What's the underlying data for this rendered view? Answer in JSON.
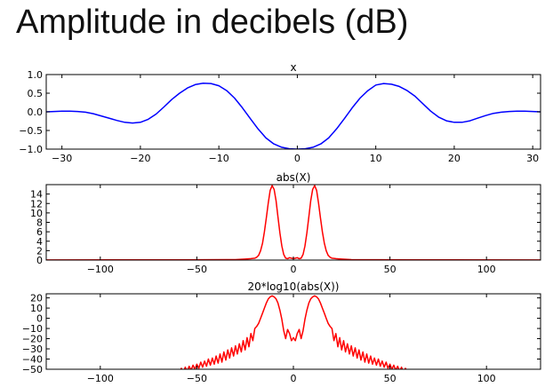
{
  "page": {
    "title": "Amplitude in decibels (dB)"
  },
  "chart_data": [
    {
      "type": "line",
      "title": "x",
      "xlim": [
        -32,
        31
      ],
      "ylim": [
        -1.0,
        1.0
      ],
      "xticks": [
        -30,
        -20,
        -10,
        0,
        10,
        20,
        30
      ],
      "yticks": [
        -1.0,
        -0.5,
        0.0,
        0.5,
        1.0
      ],
      "ytick_labels": [
        "−1.0",
        "−0.5",
        "0.0",
        "0.5",
        "1.0"
      ],
      "xtick_labels": [
        "−30",
        "−20",
        "−10",
        "0",
        "10",
        "20",
        "30"
      ],
      "color": "#0000ff",
      "series": [
        {
          "x": [
            -32,
            -31,
            -30,
            -29,
            -28,
            -27,
            -26,
            -25,
            -24,
            -23,
            -22,
            -21,
            -20,
            -19,
            -18,
            -17,
            -16,
            -15,
            -14,
            -13,
            -12,
            -11,
            -10,
            -9,
            -8,
            -7,
            -6,
            -5,
            -4,
            -3,
            -2,
            -1,
            0,
            1,
            2,
            3,
            4,
            5,
            6,
            7,
            8,
            9,
            10,
            11,
            12,
            13,
            14,
            15,
            16,
            17,
            18,
            19,
            20,
            21,
            22,
            23,
            24,
            25,
            26,
            27,
            28,
            29,
            30,
            31
          ],
          "y": [
            0.0,
            0.01,
            0.02,
            0.02,
            0.01,
            -0.01,
            -0.05,
            -0.11,
            -0.17,
            -0.23,
            -0.28,
            -0.3,
            -0.28,
            -0.2,
            -0.06,
            0.13,
            0.33,
            0.5,
            0.64,
            0.73,
            0.77,
            0.76,
            0.7,
            0.57,
            0.37,
            0.11,
            -0.18,
            -0.46,
            -0.7,
            -0.86,
            -0.95,
            -0.99,
            -1.0,
            -0.99,
            -0.95,
            -0.86,
            -0.7,
            -0.46,
            -0.18,
            0.11,
            0.37,
            0.57,
            0.72,
            0.76,
            0.74,
            0.68,
            0.57,
            0.42,
            0.22,
            0.02,
            -0.14,
            -0.24,
            -0.28,
            -0.28,
            -0.24,
            -0.17,
            -0.1,
            -0.04,
            -0.01,
            0.01,
            0.02,
            0.02,
            0.01,
            0.0
          ]
        }
      ]
    },
    {
      "type": "line",
      "title": "abs(X)",
      "xlim": [
        -128,
        128
      ],
      "ylim": [
        0,
        16
      ],
      "xticks": [
        -100,
        -50,
        0,
        50,
        100
      ],
      "xtick_labels": [
        "−100",
        "−50",
        "0",
        "50",
        "100"
      ],
      "yticks": [
        0,
        2,
        4,
        6,
        8,
        10,
        12,
        14
      ],
      "ytick_labels": [
        "0",
        "2",
        "4",
        "6",
        "8",
        "10",
        "12",
        "14"
      ],
      "color": "#ff0000",
      "series": [
        {
          "x": [
            -128,
            -60,
            -30,
            -25,
            -22,
            -20,
            -19,
            -18,
            -17,
            -16,
            -15,
            -14,
            -13,
            -12,
            -11,
            -10,
            -9,
            -8,
            -7,
            -6,
            -5,
            -4,
            -3,
            -2,
            -1,
            0,
            1,
            2,
            3,
            4,
            5,
            6,
            7,
            8,
            9,
            10,
            11,
            12,
            13,
            14,
            15,
            16,
            17,
            18,
            19,
            20,
            22,
            25,
            30,
            60,
            128
          ],
          "y": [
            0.02,
            0.05,
            0.1,
            0.2,
            0.3,
            0.4,
            0.6,
            1.0,
            2.0,
            3.6,
            6.0,
            9.0,
            12.2,
            14.8,
            15.8,
            15.0,
            12.6,
            9.2,
            5.8,
            3.0,
            1.2,
            0.4,
            0.3,
            0.5,
            0.4,
            0.3,
            0.4,
            0.5,
            0.3,
            0.4,
            1.2,
            3.0,
            5.8,
            9.2,
            12.6,
            15.0,
            15.8,
            14.8,
            12.2,
            9.0,
            6.0,
            3.6,
            2.0,
            1.0,
            0.6,
            0.4,
            0.3,
            0.2,
            0.1,
            0.05,
            0.02
          ]
        }
      ]
    },
    {
      "type": "line",
      "title": "20*log10(abs(X))",
      "xlim": [
        -128,
        128
      ],
      "ylim": [
        -50,
        24
      ],
      "xticks": [
        -100,
        -50,
        0,
        50,
        100
      ],
      "xtick_labels": [
        "−100",
        "−50",
        "0",
        "50",
        "100"
      ],
      "yticks": [
        -50,
        -40,
        -30,
        -20,
        -10,
        0,
        10,
        20
      ],
      "ytick_labels": [
        "−50",
        "−40",
        "−30",
        "−20",
        "−10",
        "0",
        "10",
        "20"
      ],
      "color": "#ff0000",
      "series": [
        {
          "x": [
            -60,
            -59,
            -58,
            -57,
            -56,
            -55,
            -54,
            -53,
            -52,
            -51,
            -50,
            -49,
            -48,
            -47,
            -46,
            -45,
            -44,
            -43,
            -42,
            -41,
            -40,
            -39,
            -38,
            -37,
            -36,
            -35,
            -34,
            -33,
            -32,
            -31,
            -30,
            -29,
            -28,
            -27,
            -26,
            -25,
            -24,
            -23,
            -22,
            -21,
            -20,
            -19,
            -18,
            -17,
            -16,
            -15,
            -14,
            -13,
            -12,
            -11,
            -10,
            -9,
            -8,
            -7,
            -6,
            -5,
            -4,
            -3,
            -2,
            -1,
            0,
            1,
            2,
            3,
            4,
            5,
            6,
            7,
            8,
            9,
            10,
            11,
            12,
            13,
            14,
            15,
            16,
            17,
            18,
            19,
            20,
            21,
            22,
            23,
            24,
            25,
            26,
            27,
            28,
            29,
            30,
            31,
            32,
            33,
            34,
            35,
            36,
            37,
            38,
            39,
            40,
            41,
            42,
            43,
            44,
            45,
            46,
            47,
            48,
            49,
            50,
            51,
            52,
            53,
            54,
            55,
            56,
            57,
            58,
            59,
            60
          ],
          "y": [
            -50,
            -52,
            -49,
            -53,
            -48,
            -52,
            -47,
            -51,
            -46,
            -50,
            -45,
            -49,
            -43,
            -48,
            -42,
            -47,
            -40,
            -46,
            -39,
            -45,
            -37,
            -44,
            -35,
            -43,
            -33,
            -41,
            -31,
            -39,
            -29,
            -37,
            -27,
            -35,
            -25,
            -33,
            -22,
            -31,
            -19,
            -28,
            -15,
            -22,
            -10,
            -8,
            -5,
            0,
            5,
            10,
            15,
            19,
            21,
            22,
            21,
            19,
            15,
            8,
            -1,
            -12,
            -20,
            -11,
            -15,
            -22,
            -19,
            -22,
            -15,
            -11,
            -20,
            -12,
            -1,
            8,
            15,
            19,
            21,
            22,
            21,
            19,
            15,
            10,
            5,
            0,
            -5,
            -8,
            -10,
            -22,
            -15,
            -28,
            -19,
            -31,
            -22,
            -33,
            -25,
            -35,
            -27,
            -37,
            -29,
            -39,
            -31,
            -41,
            -33,
            -43,
            -35,
            -44,
            -37,
            -45,
            -39,
            -46,
            -40,
            -47,
            -42,
            -48,
            -43,
            -49,
            -45,
            -50,
            -46,
            -51,
            -47,
            -52,
            -48,
            -53,
            -49,
            -52,
            -50
          ]
        }
      ]
    }
  ]
}
